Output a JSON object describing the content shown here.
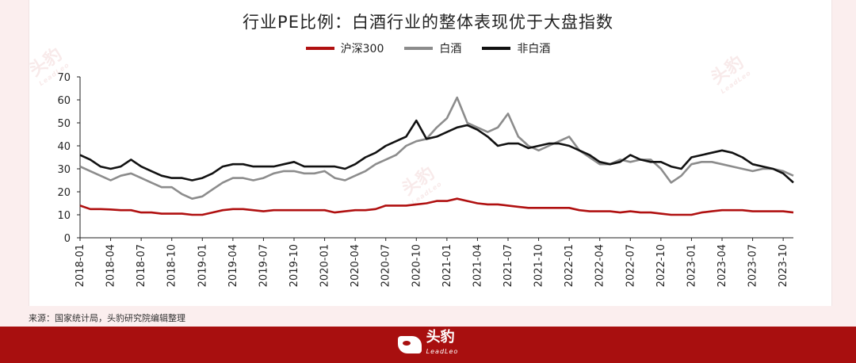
{
  "header": {
    "title": "行业PE比例：白酒行业的整体表现优于大盘指数"
  },
  "source": {
    "text": "来源：国家统计局，头豹研究院编辑整理"
  },
  "footer": {
    "brand": "头豹",
    "brand_sub": "LeadLeo"
  },
  "watermark": {
    "text": "头豹",
    "sub": "LeadLeo"
  },
  "colors": {
    "hs300": "#b01010",
    "baijiu": "#8c8c8c",
    "non_baijiu": "#111111",
    "accent": "#a80f0f"
  },
  "chart_data": {
    "type": "line",
    "title": "行业PE比例：白酒行业的整体表现优于大盘指数",
    "xlabel": "",
    "ylabel": "",
    "ylim": [
      0,
      70
    ],
    "yticks": [
      0,
      10,
      20,
      30,
      40,
      50,
      60,
      70
    ],
    "grid": false,
    "legend_position": "top-center",
    "x_tick_labels": [
      "2018-01",
      "2018-04",
      "2018-07",
      "2018-10",
      "2019-01",
      "2019-04",
      "2019-07",
      "2019-10",
      "2020-01",
      "2020-04",
      "2020-07",
      "2020-10",
      "2021-01",
      "2021-04",
      "2021-07",
      "2021-10",
      "2022-01",
      "2022-04",
      "2022-07",
      "2022-10",
      "2023-01",
      "2023-04",
      "2023-07",
      "2023-10"
    ],
    "x": [
      "2018-01",
      "2018-02",
      "2018-03",
      "2018-04",
      "2018-05",
      "2018-06",
      "2018-07",
      "2018-08",
      "2018-09",
      "2018-10",
      "2018-11",
      "2018-12",
      "2019-01",
      "2019-02",
      "2019-03",
      "2019-04",
      "2019-05",
      "2019-06",
      "2019-07",
      "2019-08",
      "2019-09",
      "2019-10",
      "2019-11",
      "2019-12",
      "2020-01",
      "2020-02",
      "2020-03",
      "2020-04",
      "2020-05",
      "2020-06",
      "2020-07",
      "2020-08",
      "2020-09",
      "2020-10",
      "2020-11",
      "2020-12",
      "2021-01",
      "2021-02",
      "2021-03",
      "2021-04",
      "2021-05",
      "2021-06",
      "2021-07",
      "2021-08",
      "2021-09",
      "2021-10",
      "2021-11",
      "2021-12",
      "2022-01",
      "2022-02",
      "2022-03",
      "2022-04",
      "2022-05",
      "2022-06",
      "2022-07",
      "2022-08",
      "2022-09",
      "2022-10",
      "2022-11",
      "2022-12",
      "2023-01",
      "2023-02",
      "2023-03",
      "2023-04",
      "2023-05",
      "2023-06",
      "2023-07",
      "2023-08",
      "2023-09",
      "2023-10",
      "2023-11"
    ],
    "series": [
      {
        "name": "沪深300",
        "color": "#b01010",
        "values": [
          14,
          12.5,
          12.5,
          12.3,
          12,
          12,
          11,
          11,
          10.5,
          10.5,
          10.5,
          10,
          10,
          11,
          12,
          12.5,
          12.5,
          12,
          11.5,
          12,
          12,
          12,
          12,
          12,
          12,
          11,
          11.5,
          12,
          12,
          12.5,
          14,
          14,
          14,
          14.5,
          15,
          16,
          16,
          17,
          16,
          15,
          14.5,
          14.5,
          14,
          13.5,
          13,
          13,
          13,
          13,
          13,
          12,
          11.5,
          11.5,
          11.5,
          11,
          11.5,
          11,
          11,
          10.5,
          10,
          10,
          10,
          11,
          11.5,
          12,
          12,
          12,
          11.5,
          11.5,
          11.5,
          11.5,
          11
        ]
      },
      {
        "name": "白酒",
        "color": "#8c8c8c",
        "values": [
          31,
          29,
          27,
          25,
          27,
          28,
          26,
          24,
          22,
          22,
          19,
          17,
          18,
          21,
          24,
          26,
          26,
          25,
          26,
          28,
          29,
          29,
          28,
          28,
          29,
          26,
          25,
          27,
          29,
          32,
          34,
          36,
          40,
          42,
          43,
          48,
          52,
          61,
          50,
          48,
          46,
          48,
          54,
          44,
          40,
          38,
          40,
          42,
          44,
          38,
          35,
          32,
          32,
          34,
          33,
          34,
          34,
          30,
          24,
          27,
          32,
          33,
          33,
          32,
          31,
          30,
          29,
          30,
          30,
          29,
          27
        ]
      },
      {
        "name": "非白酒",
        "color": "#111111",
        "values": [
          36,
          34,
          31,
          30,
          31,
          34,
          31,
          29,
          27,
          26,
          26,
          25,
          26,
          28,
          31,
          32,
          32,
          31,
          31,
          31,
          32,
          33,
          31,
          31,
          31,
          31,
          30,
          32,
          35,
          37,
          40,
          42,
          44,
          51,
          43,
          44,
          46,
          48,
          49,
          47,
          44,
          40,
          41,
          41,
          39,
          40,
          41,
          41,
          40,
          38,
          36,
          33,
          32,
          33,
          36,
          34,
          33,
          33,
          31,
          30,
          35,
          36,
          37,
          38,
          37,
          35,
          32,
          31,
          30,
          28,
          24
        ]
      }
    ]
  }
}
